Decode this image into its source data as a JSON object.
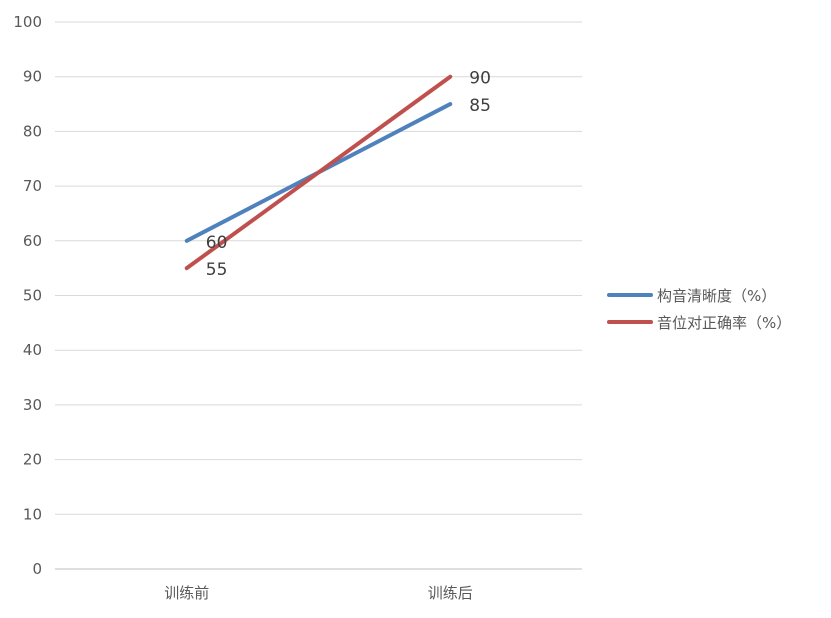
{
  "chart_data": {
    "type": "line",
    "title": "",
    "xlabel": "",
    "ylabel": "",
    "categories": [
      "训练前",
      "训练后"
    ],
    "ylim": [
      0,
      100
    ],
    "yticks": [
      0,
      10,
      20,
      30,
      40,
      50,
      60,
      70,
      80,
      90,
      100
    ],
    "grid": true,
    "legend_position": "right",
    "series": [
      {
        "name": "构音清晰度（%）",
        "values": [
          60,
          85
        ],
        "color": "#4F81BD"
      },
      {
        "name": "音位对正确率（%）",
        "values": [
          55,
          90
        ],
        "color": "#C0504D"
      }
    ],
    "colors": {
      "grid": "#D9D9D9",
      "axis": "#BFBFBF"
    }
  }
}
